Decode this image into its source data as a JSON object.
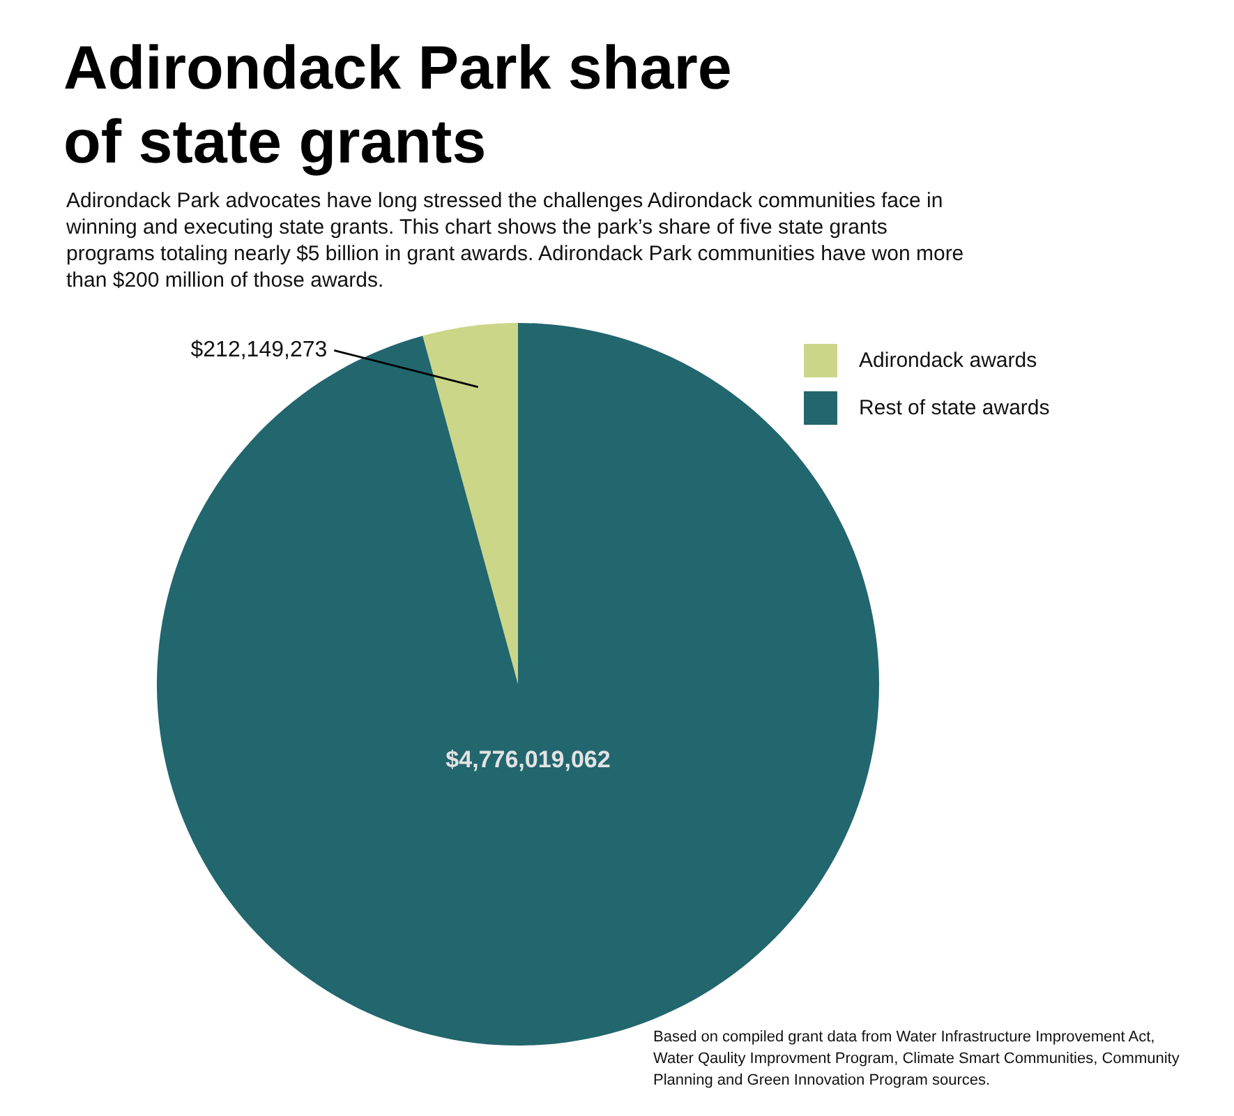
{
  "chart_data": {
    "type": "pie",
    "title": "Adirondack Park share of state grants",
    "subtitle": "Adirondack Park advocates have long stressed the challenges Adirondack communities face in winning and executing state grants. This chart shows the park’s share of five state grants programs totaling nearly $5 billion in grant awards. Adirondack Park communities have won more than $200 million of those awards.",
    "categories": [
      "Adirondack awards",
      "Rest of state awards"
    ],
    "values": [
      212149273,
      4776019062
    ],
    "colors": [
      "#cbd688",
      "#22666e"
    ],
    "value_labels": [
      "$212,149,273",
      "$4,776,019,062"
    ],
    "legend": "top right",
    "annotations": [
      "Based on compiled grant data from Water Infrastructure Improvement Act, Water Qaulity Improvment Program, Climate Smart Communities, Community Planning and Green Innovation Program sources."
    ]
  }
}
